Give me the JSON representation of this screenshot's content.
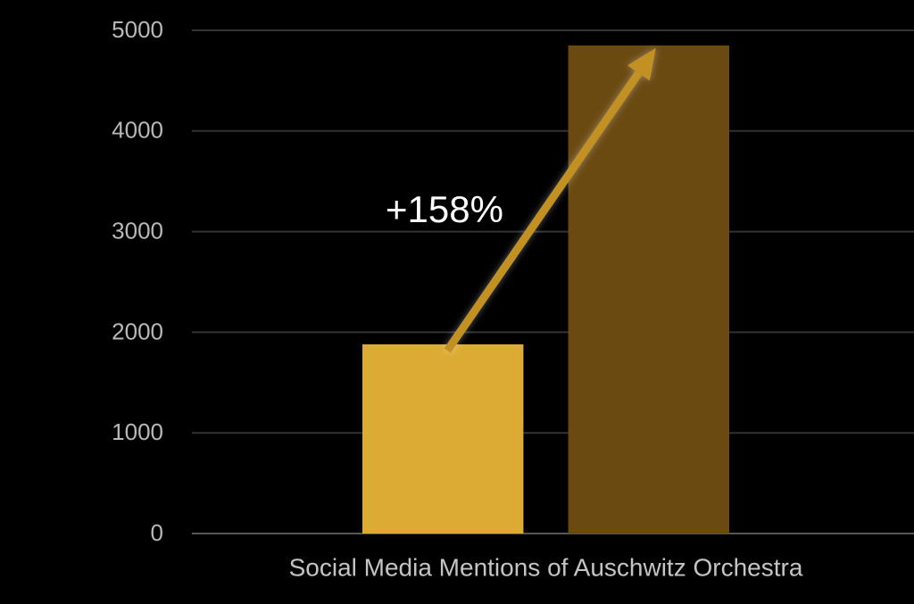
{
  "chart_data": {
    "type": "bar",
    "categories": [
      "Social Media Mentions of Auschwitz Orchestra"
    ],
    "series": [
      {
        "color": "#dbab34",
        "values": [
          1880
        ]
      },
      {
        "color": "#6b4a12",
        "values": [
          4850
        ]
      }
    ],
    "annotation": "+158%",
    "ylim": [
      0,
      5000
    ],
    "yticks": [
      0,
      1000,
      2000,
      3000,
      4000,
      5000
    ],
    "grid": true
  }
}
